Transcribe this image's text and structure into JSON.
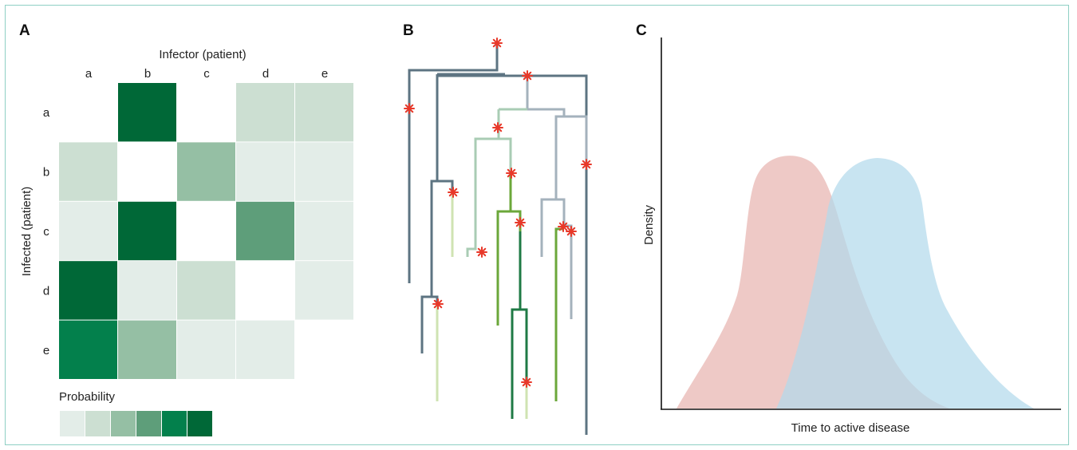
{
  "panels": {
    "a": {
      "letter": "A"
    },
    "b": {
      "letter": "B"
    },
    "c": {
      "letter": "C"
    }
  },
  "heatmap": {
    "xlabel": "Infector (patient)",
    "ylabel": "Infected (patient)",
    "columns": [
      "a",
      "b",
      "c",
      "d",
      "e"
    ],
    "rows": [
      "a",
      "b",
      "c",
      "d",
      "e"
    ],
    "levels": [
      0,
      1,
      2,
      3,
      4,
      5,
      6
    ],
    "palette": [
      "#ffffff",
      "#e3ede8",
      "#ccdfd2",
      "#95bfa4",
      "#5e9e7a",
      "#03804c",
      "#006837"
    ],
    "cells": [
      [
        0,
        6,
        0,
        2,
        2
      ],
      [
        2,
        0,
        3,
        1,
        1
      ],
      [
        1,
        6,
        0,
        4,
        1
      ],
      [
        6,
        1,
        2,
        0,
        1
      ],
      [
        5,
        3,
        1,
        1,
        0
      ]
    ],
    "legend_title": "Probability",
    "legend_levels": [
      1,
      2,
      3,
      4,
      5,
      6
    ]
  },
  "tree": {
    "colors": {
      "slate": "#5d7482",
      "grey": "#a4b2bc",
      "sage": "#a9ccb4",
      "lime": "#cfe3b2",
      "green": "#6ba73a",
      "dark_green": "#1f7a45",
      "mutation": "#e8392a"
    }
  },
  "density": {
    "xlabel": "Time to active disease",
    "ylabel": "Density",
    "series": [
      {
        "color": "#e8b4b0"
      },
      {
        "color": "#b3daec"
      }
    ]
  }
}
